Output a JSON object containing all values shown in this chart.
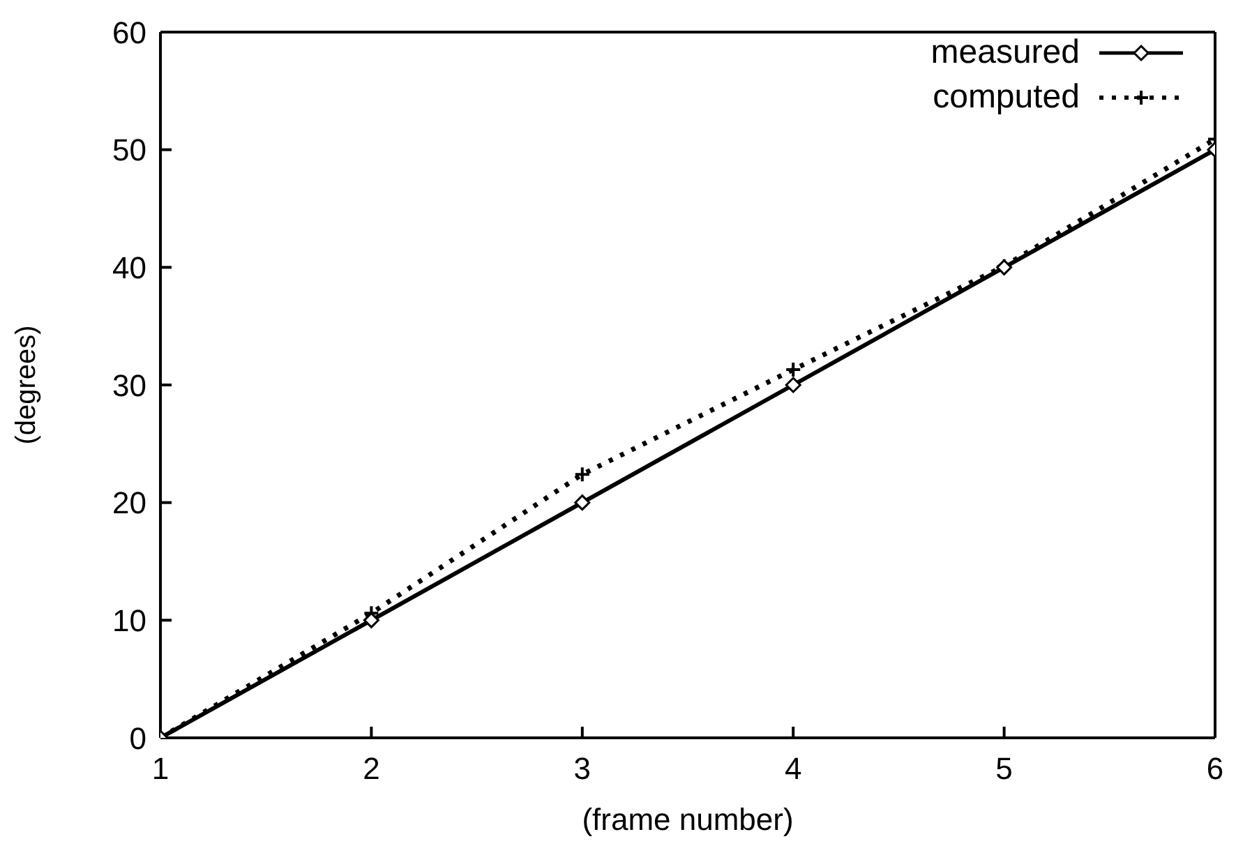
{
  "chart_data": {
    "type": "line",
    "xlabel": "(frame number)",
    "ylabel": "(degrees)",
    "x": [
      1,
      2,
      3,
      4,
      5,
      6
    ],
    "series": [
      {
        "name": "measured",
        "color": "#000000",
        "values": [
          0,
          10,
          20,
          30,
          40,
          50
        ],
        "marker": "diamond",
        "line_style": "solid"
      },
      {
        "name": "computed",
        "color": "#000000",
        "values": [
          0,
          10.6,
          22.4,
          31.3,
          40.1,
          50.9
        ],
        "marker": "cross",
        "line_style": "dotted"
      }
    ],
    "xlim": [
      1,
      6
    ],
    "xticks": [
      1,
      2,
      3,
      4,
      5,
      6
    ],
    "ylim": [
      0,
      60
    ],
    "yticks": [
      0,
      10,
      20,
      30,
      40,
      50,
      60
    ],
    "grid": false,
    "legend": "top right"
  }
}
